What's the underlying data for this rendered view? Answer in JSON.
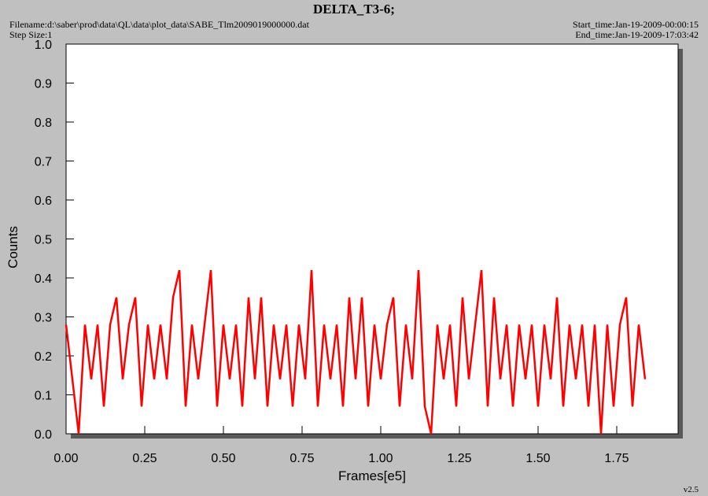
{
  "chart_data": {
    "type": "line",
    "title": "DELTA_T3-6;",
    "filename": "Filename:d:\\saber\\prod\\data\\QL\\data\\plot_data\\SABE_Tlm2009019000000.dat",
    "step_size": "Step Size:1",
    "start_time": "Start_time:Jan-19-2009-00:00:15",
    "end_time": "End_time:Jan-19-2009-17:03:42",
    "ylabel": "Counts",
    "xlabel": "Frames[e5]",
    "version": "v2.5",
    "color": "#ff0000",
    "xlim": [
      0,
      1.945
    ],
    "ylim": [
      0,
      1
    ],
    "xticks": [
      {
        "value": 0,
        "label": "0.00"
      },
      {
        "value": 0.25,
        "label": "0.25"
      },
      {
        "value": 0.5,
        "label": "0.50"
      },
      {
        "value": 0.75,
        "label": "0.75"
      },
      {
        "value": 1,
        "label": "1.00"
      },
      {
        "value": 1.25,
        "label": "1.25"
      },
      {
        "value": 1.5,
        "label": "1.50"
      },
      {
        "value": 1.75,
        "label": "1.75"
      }
    ],
    "yticks": [
      {
        "value": 0,
        "label": "0.0"
      },
      0.1,
      0.2,
      0.3,
      0.4,
      0.5,
      0.6,
      0.7,
      0.8,
      0.9,
      {
        "value": 1,
        "label": "1.0"
      }
    ],
    "x": [
      0,
      0.02,
      0.04,
      0.06,
      0.08,
      0.1,
      0.12,
      0.14,
      0.16,
      0.18,
      0.2,
      0.22,
      0.24,
      0.26,
      0.28,
      0.3,
      0.32,
      0.34,
      0.36,
      0.38,
      0.4,
      0.42,
      0.44,
      0.46,
      0.48,
      0.5,
      0.52,
      0.54,
      0.56,
      0.58,
      0.6,
      0.62,
      0.64,
      0.66,
      0.68,
      0.7,
      0.72,
      0.74,
      0.76,
      0.78,
      0.8,
      0.82,
      0.84,
      0.86,
      0.88,
      0.9,
      0.92,
      0.94,
      0.96,
      0.98,
      1,
      1.02,
      1.04,
      1.06,
      1.08,
      1.1,
      1.12,
      1.14,
      1.16,
      1.18,
      1.2,
      1.22,
      1.24,
      1.26,
      1.28,
      1.3,
      1.32,
      1.34,
      1.36,
      1.38,
      1.4,
      1.42,
      1.44,
      1.46,
      1.48,
      1.5,
      1.52,
      1.54,
      1.56,
      1.58,
      1.6,
      1.62,
      1.64,
      1.66,
      1.68,
      1.7,
      1.72,
      1.74,
      1.76,
      1.78,
      1.8,
      1.82,
      1.84
    ],
    "values": [
      0.28,
      0.14,
      0,
      0.28,
      0.14,
      0.28,
      0.07,
      0.28,
      0.35,
      0.14,
      0.28,
      0.35,
      0.07,
      0.28,
      0.14,
      0.28,
      0.14,
      0.35,
      0.42,
      0.07,
      0.28,
      0.14,
      0.28,
      0.42,
      0.07,
      0.28,
      0.14,
      0.28,
      0.07,
      0.35,
      0.14,
      0.35,
      0.07,
      0.28,
      0.14,
      0.28,
      0.07,
      0.28,
      0.14,
      0.42,
      0.07,
      0.28,
      0.14,
      0.28,
      0.07,
      0.35,
      0.14,
      0.35,
      0.07,
      0.28,
      0.14,
      0.28,
      0.35,
      0.07,
      0.28,
      0.14,
      0.42,
      0.07,
      0,
      0.28,
      0.14,
      0.28,
      0.07,
      0.35,
      0.14,
      0.28,
      0.42,
      0.07,
      0.35,
      0.14,
      0.28,
      0.07,
      0.28,
      0.14,
      0.28,
      0.07,
      0.28,
      0.14,
      0.35,
      0.07,
      0.28,
      0.14,
      0.28,
      0.07,
      0.28,
      0,
      0.28,
      0.07,
      0.28,
      0.35,
      0.07,
      0.28,
      0.14
    ]
  }
}
